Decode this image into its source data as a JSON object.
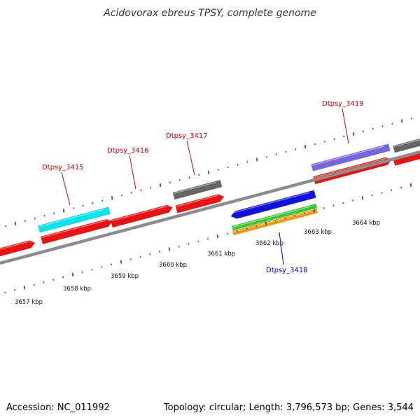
{
  "title": "Acidovorax ebreus TPSY, complete genome",
  "footer": {
    "accession": "Accession: NC_011992",
    "summary": "Topology: circular; Length: 3,796,573 bp; Genes: 3,544"
  },
  "colors": {
    "backbone": "#8c8c8c",
    "tick": "#1f7a1f",
    "forward_label": "#cc0000",
    "reverse_label": "#0000cc",
    "red_gene": "#ee1111",
    "cyan_feature": "#00e5ee",
    "gray_feature": "#666666",
    "purple_feature": "#7766dd",
    "blue_gene": "#1111dd",
    "green_feature": "#33cc33",
    "orange_feature": "#ff9900"
  },
  "ruler": {
    "unit": "kbp",
    "labels": [
      "3657 kbp",
      "3658 kbp",
      "3659 kbp",
      "3660 kbp",
      "3661 kbp",
      "3662 kbp",
      "3663 kbp",
      "3664 kbp"
    ]
  },
  "genes": {
    "forward": [
      {
        "label": "Dtpsy_3415"
      },
      {
        "label": "Dtpsy_3416"
      },
      {
        "label": "Dtpsy_3417"
      },
      {
        "label": "Dtpsy_3419"
      }
    ],
    "reverse": [
      {
        "label": "Dtpsy_3418"
      }
    ]
  }
}
